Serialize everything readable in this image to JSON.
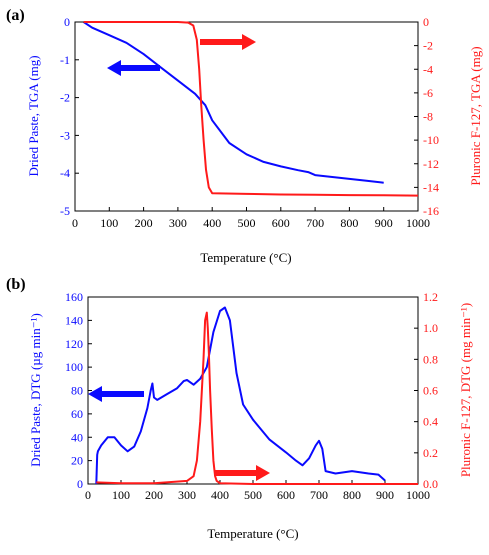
{
  "colors": {
    "blue": "#0a0aff",
    "red": "#ff1a1a",
    "black": "#000000"
  },
  "chart_data": [
    {
      "panel": "(a)",
      "type": "line",
      "xlabel": "Temperature (°C)",
      "ylabel_left": "Dried Paste, TGA (mg)",
      "ylabel_right": "Pluronic F-127, TGA (mg)",
      "xlim": [
        0,
        1000
      ],
      "ylim_left": [
        -5,
        0
      ],
      "ylim_right": [
        -16,
        0
      ],
      "x_ticks": [
        "0",
        "100",
        "200",
        "300",
        "400",
        "500",
        "600",
        "700",
        "800",
        "900",
        "1000"
      ],
      "yleft_ticks": [
        "0",
        "-1",
        "-2",
        "-3",
        "-4",
        "-5"
      ],
      "yright_ticks": [
        "0",
        "-2",
        "-4",
        "-6",
        "-8",
        "-10",
        "-12",
        "-14",
        "-16"
      ],
      "grid": false,
      "series": [
        {
          "axis": "left",
          "color": "#0a0aff",
          "x": [
            25,
            50,
            100,
            150,
            200,
            250,
            300,
            350,
            380,
            400,
            450,
            500,
            550,
            600,
            650,
            680,
            700,
            750,
            800,
            850,
            900
          ],
          "y": [
            0,
            -0.15,
            -0.35,
            -0.55,
            -0.85,
            -1.2,
            -1.55,
            -1.9,
            -2.2,
            -2.6,
            -3.2,
            -3.5,
            -3.7,
            -3.82,
            -3.92,
            -3.97,
            -4.05,
            -4.1,
            -4.15,
            -4.2,
            -4.25
          ]
        },
        {
          "axis": "right",
          "color": "#ff1a1a",
          "x": [
            25,
            100,
            200,
            300,
            330,
            345,
            355,
            362,
            368,
            375,
            382,
            390,
            400,
            500,
            600,
            700,
            800,
            900,
            1000
          ],
          "y": [
            0,
            0,
            0,
            0,
            -0.05,
            -0.3,
            -1.5,
            -4,
            -7,
            -10,
            -12.5,
            -14,
            -14.5,
            -14.55,
            -14.6,
            -14.62,
            -14.65,
            -14.67,
            -14.7
          ]
        }
      ],
      "arrows": [
        {
          "color": "#0a0aff",
          "direction": "left"
        },
        {
          "color": "#ff1a1a",
          "direction": "right"
        }
      ]
    },
    {
      "panel": "(b)",
      "type": "line",
      "xlabel": "Temperature (°C)",
      "ylabel_left": "Dried Paste, DTG (µg min⁻¹)",
      "ylabel_right": "Pluronic F-127, DTG (mg min⁻¹)",
      "xlim": [
        0,
        1000
      ],
      "ylim_left": [
        0,
        160
      ],
      "ylim_right": [
        0,
        1.2
      ],
      "x_ticks": [
        "0",
        "100",
        "200",
        "300",
        "400",
        "500",
        "600",
        "700",
        "800",
        "900",
        "1000"
      ],
      "yleft_ticks": [
        "0",
        "20",
        "40",
        "60",
        "80",
        "100",
        "120",
        "140",
        "160"
      ],
      "yright_ticks": [
        "0.0",
        "0.2",
        "0.4",
        "0.6",
        "0.8",
        "1.0",
        "1.2"
      ],
      "grid": false,
      "series": [
        {
          "axis": "left",
          "color": "#0a0aff",
          "x": [
            25,
            28,
            30,
            40,
            60,
            80,
            100,
            120,
            140,
            160,
            180,
            190,
            195,
            200,
            210,
            240,
            270,
            290,
            300,
            320,
            340,
            360,
            380,
            400,
            415,
            430,
            450,
            470,
            500,
            550,
            600,
            630,
            650,
            670,
            690,
            700,
            710,
            720,
            750,
            800,
            850,
            880,
            900
          ],
          "y": [
            0,
            25,
            28,
            33,
            40,
            40,
            33,
            28,
            32,
            45,
            65,
            80,
            86,
            74,
            72,
            77,
            82,
            88,
            89,
            85,
            90,
            100,
            130,
            148,
            151,
            140,
            95,
            68,
            55,
            38,
            27,
            20,
            16,
            22,
            33,
            37,
            30,
            11,
            9,
            11,
            9,
            8,
            3
          ]
        },
        {
          "axis": "right",
          "color": "#ff1a1a",
          "x": [
            25,
            100,
            200,
            300,
            320,
            330,
            340,
            350,
            355,
            360,
            363,
            366,
            370,
            375,
            380,
            385,
            390,
            400,
            500,
            600,
            700,
            800,
            900,
            1000
          ],
          "y": [
            0.01,
            0.005,
            0.005,
            0.02,
            0.05,
            0.15,
            0.4,
            0.8,
            1.05,
            1.1,
            1.0,
            0.85,
            0.6,
            0.35,
            0.15,
            0.05,
            0.02,
            0.005,
            0.0,
            0.0,
            0.0,
            0.0,
            0.0,
            0.0
          ]
        }
      ],
      "arrows": [
        {
          "color": "#0a0aff",
          "direction": "left"
        },
        {
          "color": "#ff1a1a",
          "direction": "right"
        }
      ]
    }
  ]
}
